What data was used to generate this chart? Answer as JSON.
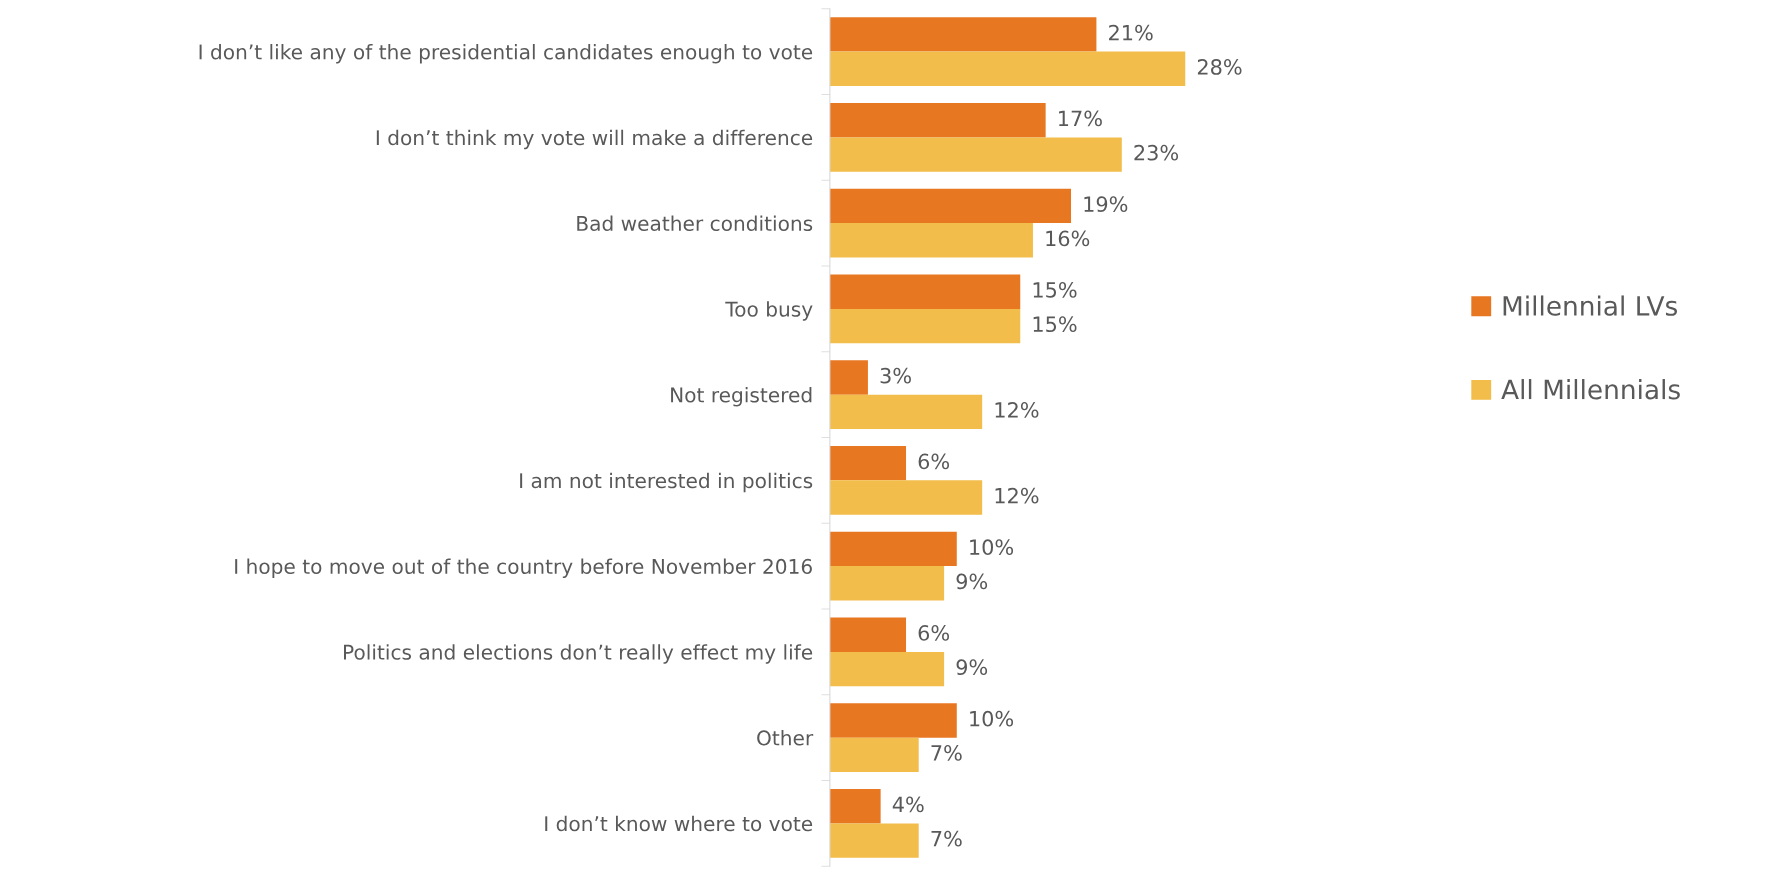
{
  "chart_data": {
    "type": "bar",
    "orientation": "horizontal",
    "categories": [
      "I don’t like any of the presidential candidates enough to vote",
      "I don’t think my vote will make a difference",
      "Bad weather conditions",
      "Too busy",
      "Not registered",
      "I am not interested in politics",
      "I hope to move out of the country before November 2016",
      "Politics and elections don’t really effect my life",
      "Other",
      "I don’t know where to vote"
    ],
    "series": [
      {
        "name": "Millennial LVs",
        "color": "#e87722",
        "values": [
          21,
          17,
          19,
          15,
          3,
          6,
          10,
          6,
          10,
          4
        ],
        "value_labels": [
          "21%",
          "17%",
          "19%",
          "15%",
          "3%",
          "6%",
          "10%",
          "6%",
          "10%",
          "4%"
        ]
      },
      {
        "name": "All Millennials",
        "color": "#f2bd4a",
        "values": [
          28,
          23,
          16,
          15,
          12,
          12,
          9,
          9,
          7,
          7
        ],
        "value_labels": [
          "28%",
          "23%",
          "16%",
          "15%",
          "12%",
          "12%",
          "9%",
          "9%",
          "7%",
          "7%"
        ]
      }
    ],
    "legend": "right",
    "grid": false,
    "tick_labels": "y"
  }
}
